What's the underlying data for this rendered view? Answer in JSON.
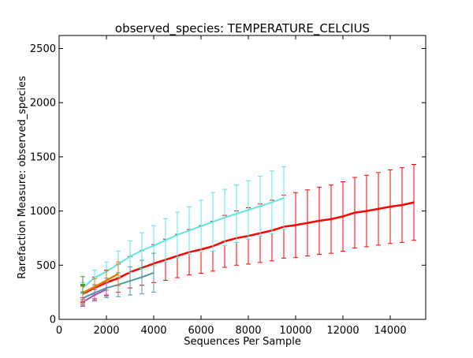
{
  "chart_data": {
    "type": "line",
    "title": "observed_species: TEMPERATURE_CELCIUS",
    "xlabel": "Sequences Per Sample",
    "ylabel": "Rarefaction Measure: observed_species",
    "xlim": [
      0,
      15500
    ],
    "ylim": [
      0,
      2620
    ],
    "x_ticks": [
      0,
      2000,
      4000,
      6000,
      8000,
      10000,
      12000,
      14000
    ],
    "y_ticks": [
      0,
      500,
      1000,
      1500,
      2000,
      2500
    ],
    "grid": false,
    "legend": "none",
    "series": [
      {
        "color": "#ff0000",
        "linewidth": 2.5,
        "x": [
          1000,
          1500,
          2000,
          2500,
          3000,
          3500,
          4000,
          4500,
          5000,
          5500,
          6000,
          6500,
          7000,
          7500,
          8000,
          8500,
          9000,
          9500,
          10000,
          10500,
          11000,
          11500,
          12000,
          12500,
          13000,
          13500,
          14000,
          14500,
          15000
        ],
        "values": [
          235,
          290,
          340,
          380,
          435,
          475,
          515,
          550,
          585,
          620,
          645,
          675,
          720,
          750,
          770,
          795,
          820,
          855,
          870,
          890,
          910,
          925,
          950,
          985,
          1000,
          1020,
          1040,
          1055,
          1080
        ],
        "err": [
          75,
          100,
          115,
          130,
          145,
          160,
          175,
          190,
          200,
          210,
          220,
          230,
          240,
          250,
          260,
          270,
          280,
          290,
          300,
          305,
          310,
          315,
          320,
          325,
          330,
          335,
          340,
          345,
          350
        ]
      },
      {
        "color": "#5ce6e6",
        "linewidth": 2,
        "x": [
          1000,
          1500,
          2000,
          2500,
          3000,
          3500,
          4000,
          4500,
          5000,
          5500,
          6000,
          6500,
          7000,
          7500,
          8000,
          8500,
          9000,
          9500
        ],
        "values": [
          290,
          385,
          440,
          510,
          580,
          635,
          680,
          730,
          780,
          820,
          860,
          900,
          940,
          975,
          1010,
          1045,
          1080,
          1120
        ],
        "err": [
          50,
          70,
          90,
          120,
          145,
          165,
          185,
          200,
          210,
          220,
          240,
          270,
          260,
          265,
          270,
          275,
          290,
          290
        ]
      },
      {
        "color": "#4b9ba5",
        "linewidth": 2,
        "x": [
          1000,
          1500,
          2000,
          2500,
          3000,
          3500,
          4000
        ],
        "values": [
          195,
          245,
          290,
          320,
          355,
          390,
          430
        ],
        "err": [
          60,
          75,
          90,
          110,
          130,
          155,
          180
        ]
      },
      {
        "color": "#e08000",
        "linewidth": 2.5,
        "x": [
          1000,
          1500,
          2000,
          2500
        ],
        "values": [
          245,
          300,
          360,
          420
        ],
        "err": [
          60,
          75,
          90,
          110
        ]
      },
      {
        "color": "#a850c0",
        "linewidth": 2,
        "x": [
          1000,
          1500,
          2000
        ],
        "values": [
          160,
          225,
          275
        ],
        "err": [
          40,
          50,
          60
        ]
      },
      {
        "color": "#c87878",
        "linewidth": 1.5,
        "x": [
          1000
        ],
        "values": [
          150
        ],
        "err": [
          20
        ]
      },
      {
        "color": "#3aa03a",
        "linewidth": 1.5,
        "x": [
          1000
        ],
        "values": [
          320
        ],
        "err": [
          75
        ]
      }
    ]
  }
}
